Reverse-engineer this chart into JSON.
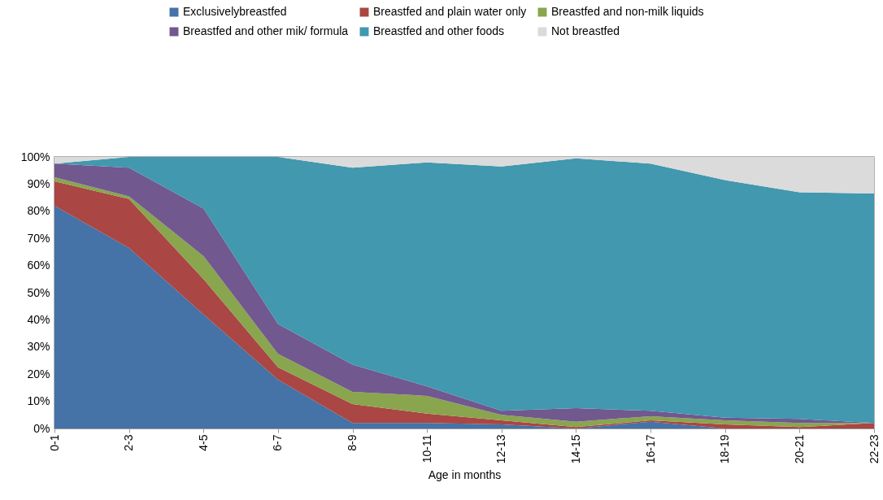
{
  "chart_data": {
    "type": "area",
    "stacked": true,
    "xlabel": "Age in months",
    "legend": "top",
    "categories": [
      "0-1",
      "2-3",
      "4-5",
      "6-7",
      "8-9",
      "10-11",
      "12-13",
      "14-15",
      "16-17",
      "18-19",
      "20-21",
      "22-23"
    ],
    "ylim": [
      0,
      100
    ],
    "yticks": [
      {
        "value": 0,
        "label": "0%"
      },
      {
        "value": 10,
        "label": "10%"
      },
      {
        "value": 20,
        "label": "20%"
      },
      {
        "value": 30,
        "label": "30%"
      },
      {
        "value": 40,
        "label": "40%"
      },
      {
        "value": 50,
        "label": "50%"
      },
      {
        "value": 60,
        "label": "60%"
      },
      {
        "value": 70,
        "label": "70%"
      },
      {
        "value": 80,
        "label": "80%"
      },
      {
        "value": 90,
        "label": "90%"
      },
      {
        "value": 100,
        "label": "100%"
      }
    ],
    "series": [
      {
        "name": "Exclusivelybreastfed",
        "color": "#4572a7",
        "values": [
          82,
          66.5,
          42,
          18,
          2,
          2,
          1.5,
          0,
          2.5,
          0,
          0,
          0
        ]
      },
      {
        "name": "Breastfed and plain water only",
        "color": "#aa4643",
        "values": [
          9,
          18,
          13,
          4.5,
          7,
          3.5,
          1.5,
          0.5,
          0.5,
          1.5,
          0.5,
          2
        ]
      },
      {
        "name": "Breastfed and non-milk liquids",
        "color": "#89a54e",
        "values": [
          1.5,
          1,
          8.5,
          5,
          4.5,
          6.5,
          2,
          2,
          1.5,
          1.5,
          1.5,
          0
        ]
      },
      {
        "name": "Breastfed and other mik/ formula",
        "color": "#71588f",
        "values": [
          5,
          10.5,
          17.5,
          11,
          10,
          3.5,
          1.5,
          5,
          2,
          1,
          1.5,
          0
        ]
      },
      {
        "name": "Breastfed and other foods",
        "color": "#4198af",
        "values": [
          0,
          4,
          19,
          61.5,
          72.5,
          82.5,
          90,
          92,
          91,
          87.5,
          83.5,
          84.5
        ]
      },
      {
        "name": "Not breastfed",
        "color": "#dbdbdb",
        "values": [
          2.5,
          0,
          0,
          0,
          4,
          2,
          3.5,
          0.5,
          2.5,
          8.5,
          13,
          13.5
        ]
      }
    ]
  }
}
